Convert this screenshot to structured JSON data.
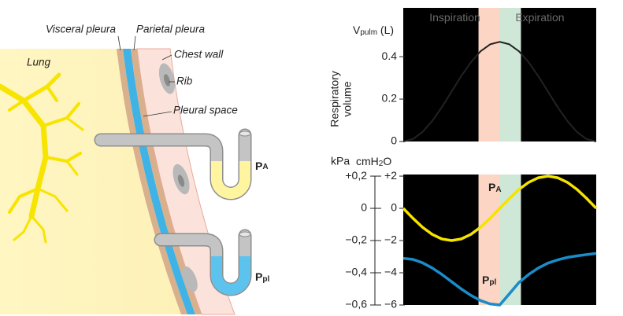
{
  "diagram": {
    "visceral_pleura": "Visceral pleura",
    "parietal_pleura": "Parietal pleura",
    "chest_wall": "Chest wall",
    "lung": "Lung",
    "rib": "Rib",
    "pleural_space": "Pleural space",
    "pa": {
      "main": "P",
      "sub": "A"
    },
    "ppl": {
      "main": "P",
      "sub": "pl"
    }
  },
  "chart_data": [
    {
      "type": "line",
      "y_unit": {
        "main": "V",
        "sub": "pulm",
        "suffix": " (L)"
      },
      "ylabel": [
        "Respiratory",
        "volume"
      ],
      "bands": [
        {
          "label": "Inspiration",
          "start": 7.8,
          "end": 10,
          "color": "#fcd5c4"
        },
        {
          "label": "Expiration",
          "start": 10,
          "end": 12.2,
          "color": "#cfe7d6"
        }
      ],
      "x": [
        0,
        1,
        2,
        3,
        4,
        5,
        6,
        7,
        8,
        9,
        10,
        11,
        12,
        13,
        14,
        15,
        16,
        17,
        18,
        19,
        20
      ],
      "xlim": [
        0,
        20
      ],
      "ylim": [
        0,
        0.53
      ],
      "yticks": [
        0,
        0.2,
        0.4
      ],
      "series": [
        {
          "color": "#222222",
          "values": [
            0,
            0.0115,
            0.045,
            0.097,
            0.162,
            0.235,
            0.308,
            0.373,
            0.425,
            0.458,
            0.47,
            0.458,
            0.425,
            0.373,
            0.308,
            0.235,
            0.162,
            0.097,
            0.045,
            0.0115,
            0
          ]
        }
      ]
    },
    {
      "type": "line",
      "y_unit": {
        "main": "cmH",
        "sub": "2",
        "suffix": "O"
      },
      "y2_unit": "kPa",
      "bands": [
        {
          "start": 7.8,
          "end": 10,
          "color": "#fcd5c4"
        },
        {
          "start": 10,
          "end": 12.2,
          "color": "#cfe7d6"
        }
      ],
      "x": [
        0,
        1,
        2,
        3,
        4,
        5,
        6,
        7,
        8,
        9,
        10,
        11,
        12,
        13,
        14,
        15,
        16,
        17,
        18,
        19,
        20
      ],
      "xlim": [
        0,
        20
      ],
      "ylim": [
        -6,
        2.1
      ],
      "yticks": [
        {
          "value": 2,
          "label": "+2"
        },
        0,
        {
          "value": -2,
          "label": "−2"
        },
        {
          "value": -4,
          "label": "−4"
        },
        {
          "value": -6,
          "label": "−6"
        }
      ],
      "y2lim": [
        -0.6,
        0.21
      ],
      "y2ticks": [
        {
          "value": 0.2,
          "label": "+0,2"
        },
        0,
        {
          "value": -0.2,
          "label": "−0,2"
        },
        {
          "value": -0.4,
          "label": "−0,4"
        },
        {
          "value": -0.6,
          "label": "−0,6"
        }
      ],
      "series": [
        {
          "name": "P",
          "name_sub": "A",
          "color": "#f5e300",
          "values": [
            0,
            -0.618,
            -1.176,
            -1.618,
            -1.902,
            -2,
            -1.902,
            -1.618,
            -1.176,
            -0.618,
            0,
            0.618,
            1.176,
            1.618,
            1.902,
            2,
            1.902,
            1.618,
            1.176,
            0.618,
            0
          ]
        },
        {
          "name": "P",
          "name_sub": "pl",
          "color": "#1a8cc9",
          "values": [
            -3.1,
            -3.17,
            -3.38,
            -3.7,
            -4.1,
            -4.55,
            -5.0,
            -5.4,
            -5.72,
            -5.93,
            -6.0,
            -5.3,
            -4.6,
            -4.1,
            -3.7,
            -3.4,
            -3.2,
            -3.05,
            -2.95,
            -2.87,
            -2.8
          ]
        }
      ]
    }
  ]
}
